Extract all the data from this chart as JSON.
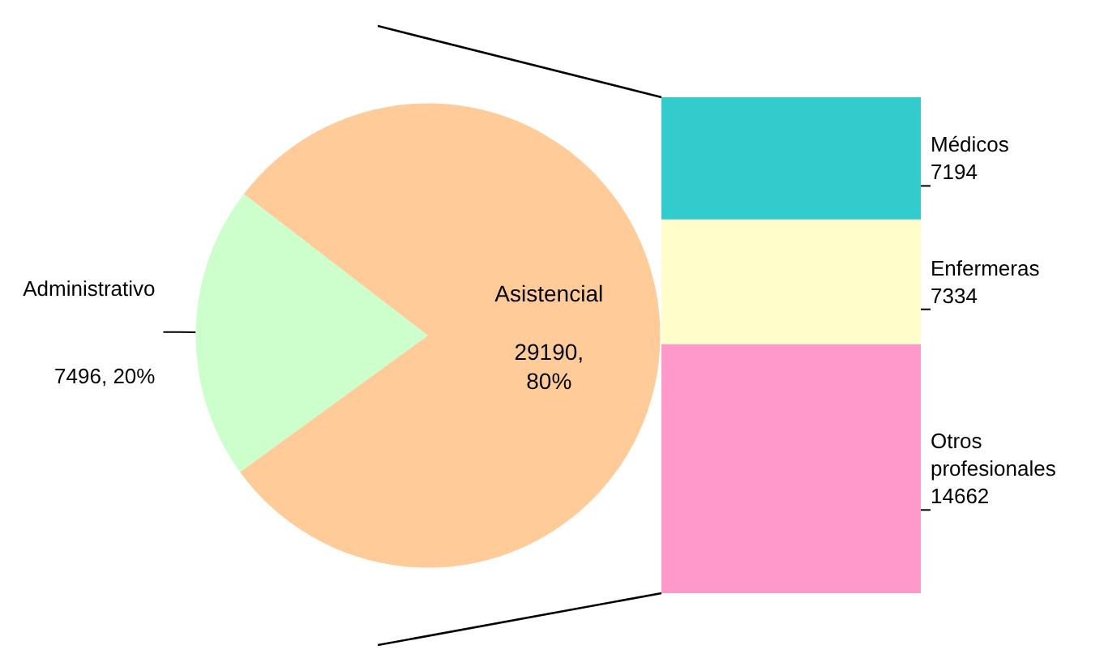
{
  "chart_data": [
    {
      "type": "pie",
      "categories": [
        "Administrativo",
        "Asistencial"
      ],
      "values": [
        7496,
        29190
      ],
      "colors": [
        "#ccffcc",
        "#ffcc99"
      ],
      "value_labels": [
        "7496, 20%",
        "29190, 80%"
      ],
      "legend": false
    },
    {
      "type": "bar",
      "stacked": true,
      "categories": [
        null
      ],
      "data_labels": true,
      "legend": false,
      "tick_labels": false,
      "series": [
        {
          "name": "Otros profesionales",
          "color": "#ff99cc",
          "values": [
            14662
          ]
        },
        {
          "name": "Enfermeras",
          "color": "#ffffcc",
          "values": [
            7334
          ]
        },
        {
          "name": "Médicos",
          "color": "#33cccc",
          "values": [
            7194
          ]
        }
      ]
    }
  ]
}
